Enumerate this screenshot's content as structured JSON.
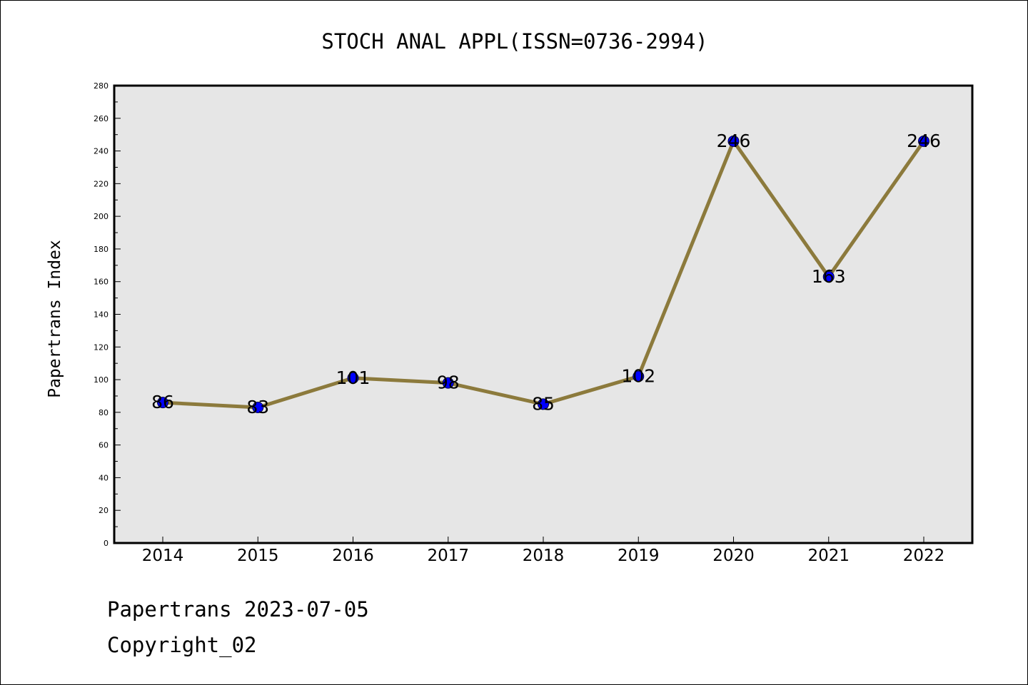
{
  "chart_data": {
    "type": "line",
    "title": "STOCH ANAL APPL(ISSN=0736-2994)",
    "xlabel": "",
    "ylabel": "Papertrans Index",
    "categories": [
      "2014",
      "2015",
      "2016",
      "2017",
      "2018",
      "2019",
      "2020",
      "2021",
      "2022"
    ],
    "series": [
      {
        "values": [
          86,
          83,
          101,
          98,
          85,
          102,
          246,
          163,
          246
        ]
      }
    ],
    "data_labels": [
      "86",
      "83",
      "101",
      "98",
      "85",
      "102",
      "246",
      "163",
      "246"
    ],
    "ylim": [
      0,
      280
    ],
    "y_ticks": [
      0,
      20,
      40,
      60,
      80,
      100,
      120,
      140,
      160,
      180,
      200,
      220,
      240,
      260,
      280
    ],
    "grid": false,
    "legend": "none",
    "colors": {
      "line": "#8c7a3c",
      "marker": "#0000ff",
      "plot_background": "#e6e6e6"
    }
  },
  "footer": {
    "date_text": "Papertrans 2023-07-05",
    "copyright_text": "Copyright_02"
  }
}
